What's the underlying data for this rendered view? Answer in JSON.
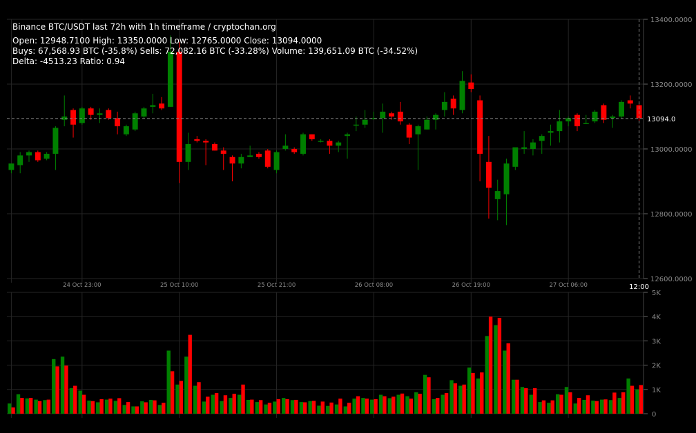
{
  "chart_data": {
    "type": "candlestick",
    "title": "Binance BTC/USDT last 72h with 1h timeframe / cryptochan.org",
    "summary": {
      "line1": "Open: 12948.7100  High: 13350.0000  Low: 12765.0000  Close: 13094.0000",
      "line2": "Buys: 67,568.93 BTC (-35.8%)  Sells: 72,082.16 BTC (-33.28%)  Volume: 139,651.09 BTC (-34.52%)",
      "line3": "Delta: -4513.23  Ratio: 0.94"
    },
    "price_axis": {
      "ylim": [
        12600,
        13400
      ],
      "ticks": [
        {
          "value": 13400,
          "label": "13400.0000"
        },
        {
          "value": 13200,
          "label": "13200.0000"
        },
        {
          "value": 13000,
          "label": "13000.0000"
        },
        {
          "value": 12800,
          "label": "12800.0000"
        },
        {
          "value": 12600,
          "label": "12600.0000"
        }
      ]
    },
    "last_price": {
      "value": 13094,
      "label": "13094.0"
    },
    "time_ticks": [
      {
        "index": 8,
        "label": "24 Oct 23:00"
      },
      {
        "index": 19,
        "label": "25 Oct 10:00"
      },
      {
        "index": 30,
        "label": "25 Oct 21:00"
      },
      {
        "index": 41,
        "label": "26 Oct 08:00"
      },
      {
        "index": 52,
        "label": "26 Oct 19:00"
      },
      {
        "index": 63,
        "label": "27 Oct 06:00"
      }
    ],
    "last_time_label": "12:00",
    "volume_axis": {
      "ylim": [
        0,
        5000
      ],
      "ticks": [
        {
          "value": 5000,
          "label": "5K"
        },
        {
          "value": 4000,
          "label": "4K"
        },
        {
          "value": 3000,
          "label": "3K"
        },
        {
          "value": 2000,
          "label": "2K"
        },
        {
          "value": 1000,
          "label": "1K"
        },
        {
          "value": 0,
          "label": "0"
        }
      ]
    },
    "colors": {
      "up": "#008000",
      "down": "#ff0000",
      "grid": "#262626",
      "text": "#888888"
    },
    "candles": [
      {
        "o": 12935,
        "h": 12950,
        "l": 12925,
        "c": 12955,
        "buy": 420,
        "sell": 260
      },
      {
        "o": 12950,
        "h": 12990,
        "l": 12925,
        "c": 12980,
        "buy": 800,
        "sell": 650
      },
      {
        "o": 12980,
        "h": 12995,
        "l": 12960,
        "c": 12990,
        "buy": 630,
        "sell": 650
      },
      {
        "o": 12990,
        "h": 12995,
        "l": 12960,
        "c": 12965,
        "buy": 580,
        "sell": 520
      },
      {
        "o": 12970,
        "h": 12990,
        "l": 12965,
        "c": 12985,
        "buy": 560,
        "sell": 580
      },
      {
        "o": 12985,
        "h": 13070,
        "l": 12935,
        "c": 13065,
        "buy": 2250,
        "sell": 1950
      },
      {
        "o": 13090,
        "h": 13165,
        "l": 13070,
        "c": 13100,
        "buy": 2350,
        "sell": 1980
      },
      {
        "o": 13120,
        "h": 13125,
        "l": 13035,
        "c": 13075,
        "buy": 1050,
        "sell": 1150
      },
      {
        "o": 13080,
        "h": 13130,
        "l": 13075,
        "c": 13125,
        "buy": 950,
        "sell": 780
      },
      {
        "o": 13125,
        "h": 13130,
        "l": 13090,
        "c": 13105,
        "buy": 540,
        "sell": 520
      },
      {
        "o": 13105,
        "h": 13125,
        "l": 13080,
        "c": 13110,
        "buy": 470,
        "sell": 600
      },
      {
        "o": 13120,
        "h": 13125,
        "l": 13090,
        "c": 13095,
        "buy": 580,
        "sell": 620
      },
      {
        "o": 13095,
        "h": 13115,
        "l": 13045,
        "c": 13070,
        "buy": 530,
        "sell": 640
      },
      {
        "o": 13045,
        "h": 13075,
        "l": 13040,
        "c": 13070,
        "buy": 360,
        "sell": 480
      },
      {
        "o": 13060,
        "h": 13115,
        "l": 13055,
        "c": 13110,
        "buy": 300,
        "sell": 300
      },
      {
        "o": 13100,
        "h": 13130,
        "l": 13095,
        "c": 13125,
        "buy": 510,
        "sell": 470
      },
      {
        "o": 13130,
        "h": 13170,
        "l": 13110,
        "c": 13135,
        "buy": 570,
        "sell": 550
      },
      {
        "o": 13140,
        "h": 13160,
        "l": 13120,
        "c": 13125,
        "buy": 360,
        "sell": 450
      },
      {
        "o": 13130,
        "h": 13350,
        "l": 13130,
        "c": 13300,
        "buy": 2600,
        "sell": 1750
      },
      {
        "o": 13300,
        "h": 13330,
        "l": 12895,
        "c": 12960,
        "buy": 1200,
        "sell": 1350
      },
      {
        "o": 12960,
        "h": 13050,
        "l": 12935,
        "c": 13015,
        "buy": 2350,
        "sell": 3250
      },
      {
        "o": 13030,
        "h": 13040,
        "l": 13020,
        "c": 13025,
        "buy": 1150,
        "sell": 1300
      },
      {
        "o": 13025,
        "h": 13030,
        "l": 12950,
        "c": 13020,
        "buy": 500,
        "sell": 700
      },
      {
        "o": 13015,
        "h": 13020,
        "l": 12995,
        "c": 12995,
        "buy": 780,
        "sell": 850
      },
      {
        "o": 12995,
        "h": 13005,
        "l": 12935,
        "c": 12985,
        "buy": 520,
        "sell": 760
      },
      {
        "o": 12975,
        "h": 12980,
        "l": 12900,
        "c": 12955,
        "buy": 650,
        "sell": 820
      },
      {
        "o": 12955,
        "h": 12985,
        "l": 12940,
        "c": 12975,
        "buy": 780,
        "sell": 1200
      },
      {
        "o": 12975,
        "h": 13010,
        "l": 12975,
        "c": 12980,
        "buy": 570,
        "sell": 580
      },
      {
        "o": 12985,
        "h": 12990,
        "l": 12970,
        "c": 12975,
        "buy": 480,
        "sell": 560
      },
      {
        "o": 12995,
        "h": 13000,
        "l": 12940,
        "c": 12945,
        "buy": 380,
        "sell": 450
      },
      {
        "o": 12935,
        "h": 12995,
        "l": 12925,
        "c": 12990,
        "buy": 500,
        "sell": 600
      },
      {
        "o": 13000,
        "h": 13045,
        "l": 12995,
        "c": 13010,
        "buy": 650,
        "sell": 600
      },
      {
        "o": 13000,
        "h": 13005,
        "l": 12985,
        "c": 12990,
        "buy": 560,
        "sell": 570
      },
      {
        "o": 12985,
        "h": 13050,
        "l": 12980,
        "c": 13045,
        "buy": 480,
        "sell": 470
      },
      {
        "o": 13045,
        "h": 13045,
        "l": 13025,
        "c": 13030,
        "buy": 520,
        "sell": 530
      },
      {
        "o": 13025,
        "h": 13030,
        "l": 13020,
        "c": 13025,
        "buy": 330,
        "sell": 500
      },
      {
        "o": 13025,
        "h": 13030,
        "l": 12985,
        "c": 13010,
        "buy": 320,
        "sell": 460
      },
      {
        "o": 13010,
        "h": 13025,
        "l": 12990,
        "c": 13020,
        "buy": 380,
        "sell": 620
      },
      {
        "o": 13040,
        "h": 13050,
        "l": 12970,
        "c": 13045,
        "buy": 300,
        "sell": 450
      },
      {
        "o": 13075,
        "h": 13100,
        "l": 13055,
        "c": 13075,
        "buy": 620,
        "sell": 720
      },
      {
        "o": 13075,
        "h": 13120,
        "l": 13065,
        "c": 13090,
        "buy": 650,
        "sell": 620
      },
      {
        "o": 13095,
        "h": 13115,
        "l": 13090,
        "c": 13095,
        "buy": 580,
        "sell": 600
      },
      {
        "o": 13095,
        "h": 13140,
        "l": 13050,
        "c": 13115,
        "buy": 780,
        "sell": 720
      },
      {
        "o": 13110,
        "h": 13115,
        "l": 13090,
        "c": 13100,
        "buy": 640,
        "sell": 700
      },
      {
        "o": 13115,
        "h": 13145,
        "l": 13075,
        "c": 13085,
        "buy": 780,
        "sell": 830
      },
      {
        "o": 13075,
        "h": 13080,
        "l": 13015,
        "c": 13035,
        "buy": 720,
        "sell": 620
      },
      {
        "o": 13045,
        "h": 13075,
        "l": 12935,
        "c": 13070,
        "buy": 880,
        "sell": 820
      },
      {
        "o": 13060,
        "h": 13100,
        "l": 13060,
        "c": 13090,
        "buy": 1600,
        "sell": 1500
      },
      {
        "o": 13090,
        "h": 13110,
        "l": 13060,
        "c": 13105,
        "buy": 600,
        "sell": 650
      },
      {
        "o": 13120,
        "h": 13175,
        "l": 13100,
        "c": 13145,
        "buy": 780,
        "sell": 850
      },
      {
        "o": 13155,
        "h": 13165,
        "l": 13105,
        "c": 13125,
        "buy": 1380,
        "sell": 1250
      },
      {
        "o": 13120,
        "h": 13240,
        "l": 13110,
        "c": 13210,
        "buy": 1150,
        "sell": 1200
      },
      {
        "o": 13205,
        "h": 13230,
        "l": 13175,
        "c": 13185,
        "buy": 1900,
        "sell": 1680
      },
      {
        "o": 13150,
        "h": 13165,
        "l": 12900,
        "c": 12985,
        "buy": 1450,
        "sell": 1700
      },
      {
        "o": 12960,
        "h": 13040,
        "l": 12785,
        "c": 12880,
        "buy": 3200,
        "sell": 4000
      },
      {
        "o": 12845,
        "h": 12905,
        "l": 12780,
        "c": 12870,
        "buy": 3650,
        "sell": 3950
      },
      {
        "o": 12860,
        "h": 12970,
        "l": 12765,
        "c": 12955,
        "buy": 2600,
        "sell": 2900
      },
      {
        "o": 12945,
        "h": 13000,
        "l": 12935,
        "c": 13005,
        "buy": 1400,
        "sell": 1400
      },
      {
        "o": 13000,
        "h": 13055,
        "l": 12985,
        "c": 13005,
        "buy": 1100,
        "sell": 1050
      },
      {
        "o": 13000,
        "h": 13030,
        "l": 12980,
        "c": 13020,
        "buy": 780,
        "sell": 1050
      },
      {
        "o": 13025,
        "h": 13045,
        "l": 12985,
        "c": 13040,
        "buy": 480,
        "sell": 550
      },
      {
        "o": 13050,
        "h": 13075,
        "l": 13010,
        "c": 13055,
        "buy": 450,
        "sell": 550
      },
      {
        "o": 13055,
        "h": 13120,
        "l": 13020,
        "c": 13085,
        "buy": 800,
        "sell": 780
      },
      {
        "o": 13085,
        "h": 13100,
        "l": 13070,
        "c": 13095,
        "buy": 1100,
        "sell": 880
      },
      {
        "o": 13105,
        "h": 13110,
        "l": 13055,
        "c": 13070,
        "buy": 420,
        "sell": 650
      },
      {
        "o": 13080,
        "h": 13105,
        "l": 13080,
        "c": 13080,
        "buy": 570,
        "sell": 760
      },
      {
        "o": 13085,
        "h": 13120,
        "l": 13080,
        "c": 13115,
        "buy": 540,
        "sell": 520
      },
      {
        "o": 13135,
        "h": 13140,
        "l": 13080,
        "c": 13090,
        "buy": 580,
        "sell": 590
      },
      {
        "o": 13095,
        "h": 13105,
        "l": 13065,
        "c": 13100,
        "buy": 560,
        "sell": 870
      },
      {
        "o": 13100,
        "h": 13150,
        "l": 13095,
        "c": 13145,
        "buy": 650,
        "sell": 880
      },
      {
        "o": 13150,
        "h": 13165,
        "l": 13125,
        "c": 13140,
        "buy": 1450,
        "sell": 1150
      },
      {
        "o": 13135,
        "h": 13140,
        "l": 13085,
        "c": 13095,
        "buy": 1000,
        "sell": 1180
      }
    ]
  }
}
